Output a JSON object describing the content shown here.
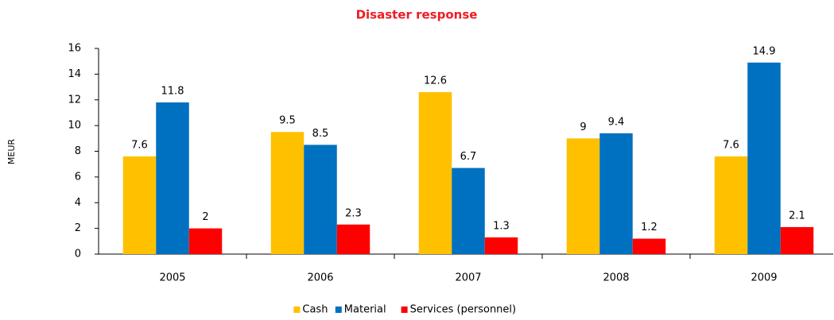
{
  "chart_data": {
    "type": "bar",
    "title": "Disaster response",
    "y_label": "MEUR",
    "categories": [
      "2005",
      "2006",
      "2007",
      "2008",
      "2009"
    ],
    "series": [
      {
        "name": "Cash",
        "color": "#ffc000",
        "values": [
          7.6,
          9.5,
          12.6,
          9,
          7.6
        ]
      },
      {
        "name": "Material",
        "color": "#0070c0",
        "values": [
          11.8,
          8.5,
          6.7,
          9.4,
          14.9
        ]
      },
      {
        "name": "Services (personnel)",
        "color": "#ff0000",
        "values": [
          2,
          2.3,
          1.3,
          1.2,
          2.1
        ]
      }
    ],
    "ylim": [
      0,
      16
    ],
    "yticks": [
      0,
      2,
      4,
      6,
      8,
      10,
      12,
      14,
      16
    ],
    "grid": false,
    "legend": "bottom"
  }
}
